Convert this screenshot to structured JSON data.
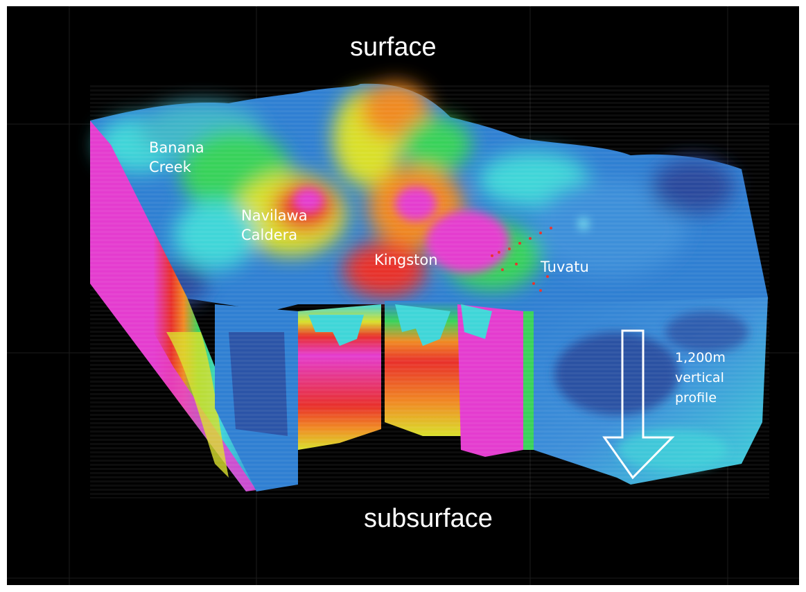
{
  "labels": {
    "top": "surface",
    "bottom": "subsurface",
    "banana_creek": "Banana\nCreek",
    "navilawa_caldera": "Navilawa\nCaldera",
    "kingston": "Kingston",
    "tuvatu": "Tuvatu",
    "depth_note": "1,200m\nvertical\nprofile"
  },
  "colors": {
    "background": "#000000",
    "magenta": "#e43ccf",
    "red": "#e8302a",
    "orange": "#f08a23",
    "yellow": "#d9e02b",
    "green": "#39d25a",
    "cyan": "#3fd6d8",
    "blue": "#2f7fd2",
    "navy": "#2a4a9c"
  },
  "icons": {
    "depth_arrow": "down-arrow-outline-icon"
  }
}
